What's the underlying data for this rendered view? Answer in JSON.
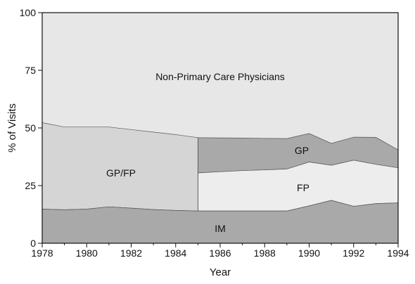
{
  "chart_data": {
    "type": "area",
    "title": "",
    "xlabel": "Year",
    "ylabel": "% of Visits",
    "xlim": [
      1978,
      1994
    ],
    "ylim": [
      0,
      100
    ],
    "x_ticks": [
      "1978",
      "1980",
      "1982",
      "1984",
      "1986",
      "1988",
      "1990",
      "1992",
      "1994"
    ],
    "y_ticks": [
      "0",
      "25",
      "50",
      "75",
      "100"
    ],
    "grid": false,
    "legend": "none",
    "colors": {
      "IM": "#a9a9a9",
      "GP/FP": "#d5d5d5",
      "FP": "#ededed",
      "GP": "#a9a9a9",
      "Non-Primary Care Physicians": "#e7e7e7"
    },
    "boundaries": {
      "im_top": [
        [
          1978,
          14.8
        ],
        [
          1979,
          14.5
        ],
        [
          1980,
          14.8
        ],
        [
          1981,
          15.8
        ],
        [
          1982,
          15.2
        ],
        [
          1983,
          14.6
        ],
        [
          1984,
          14.2
        ],
        [
          1985,
          14.0
        ],
        [
          1986,
          14.0
        ],
        [
          1987,
          14.0
        ],
        [
          1988,
          14.0
        ],
        [
          1989,
          14.0
        ],
        [
          1990,
          16.2
        ],
        [
          1991,
          18.6
        ],
        [
          1992,
          16.0
        ],
        [
          1993,
          17.2
        ],
        [
          1994,
          17.5
        ]
      ],
      "fp_top": [
        [
          1985,
          30.5
        ],
        [
          1986,
          31.0
        ],
        [
          1987,
          31.5
        ],
        [
          1988,
          31.8
        ],
        [
          1989,
          32.2
        ],
        [
          1990,
          35.2
        ],
        [
          1991,
          33.8
        ],
        [
          1992,
          36.0
        ],
        [
          1993,
          34.2
        ],
        [
          1994,
          32.7
        ]
      ],
      "primary_top": [
        [
          1978,
          52.3
        ],
        [
          1979,
          50.4
        ],
        [
          1980,
          50.4
        ],
        [
          1981,
          50.4
        ],
        [
          1982,
          49.3
        ],
        [
          1983,
          48.2
        ],
        [
          1984,
          47.1
        ],
        [
          1985,
          45.8
        ],
        [
          1986,
          45.7
        ],
        [
          1987,
          45.6
        ],
        [
          1988,
          45.5
        ],
        [
          1989,
          45.4
        ],
        [
          1990,
          47.6
        ],
        [
          1991,
          43.3
        ],
        [
          1992,
          46.0
        ],
        [
          1993,
          45.9
        ],
        [
          1994,
          40.5
        ]
      ]
    },
    "gpfp_until": 1985,
    "region_labels": {
      "non_primary": "Non-Primary Care Physicians",
      "gpfp": "GP/FP",
      "gp": "GP",
      "fp": "FP",
      "im": "IM"
    }
  }
}
